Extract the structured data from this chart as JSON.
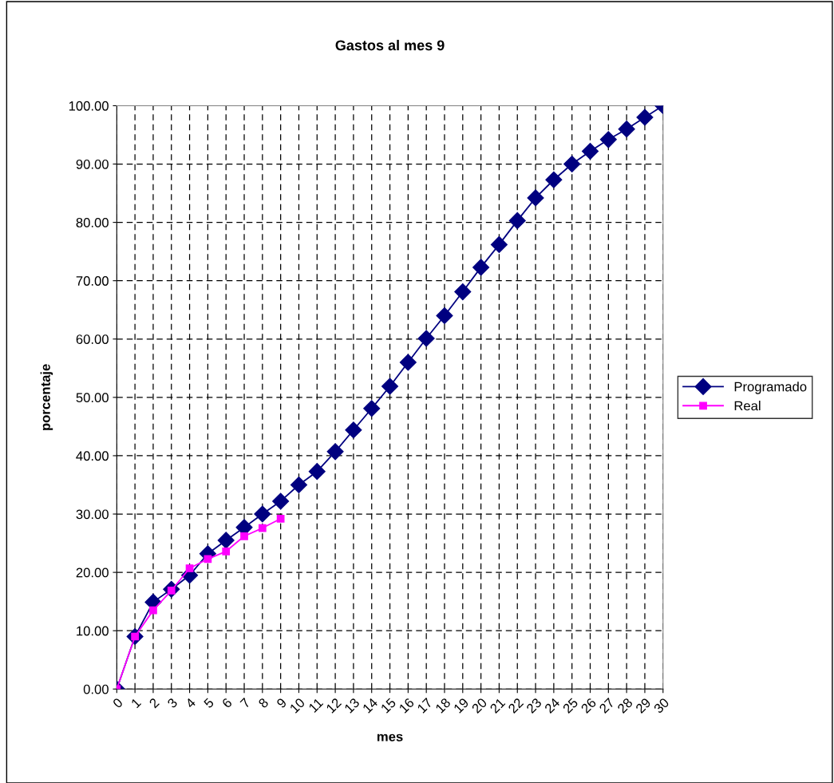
{
  "chart_data": {
    "type": "line",
    "title": "Gastos al mes 9",
    "xlabel": "mes",
    "ylabel": "porcentaje",
    "categories": [
      "0",
      "1",
      "2",
      "3",
      "4",
      "5",
      "6",
      "7",
      "8",
      "9",
      "10",
      "11",
      "12",
      "13",
      "14",
      "15",
      "16",
      "17",
      "18",
      "19",
      "20",
      "21",
      "22",
      "23",
      "24",
      "25",
      "26",
      "27",
      "28",
      "29",
      "30"
    ],
    "series": [
      {
        "name": "Programado",
        "color": "#000080",
        "marker": "diamond",
        "values": [
          0,
          9.0,
          14.9,
          17.1,
          19.5,
          23.2,
          25.5,
          27.7,
          30.0,
          32.2,
          35.0,
          37.3,
          40.7,
          44.4,
          48.1,
          51.9,
          56.0,
          60.1,
          64.0,
          68.1,
          72.3,
          76.2,
          80.3,
          84.2,
          87.3,
          90.0,
          92.2,
          94.2,
          96.0,
          98.0,
          100.0
        ]
      },
      {
        "name": "Real",
        "color": "#ff00ff",
        "marker": "square",
        "values": [
          0,
          9.0,
          13.5,
          16.9,
          20.7,
          22.3,
          23.6,
          26.2,
          27.6,
          29.2,
          null,
          null,
          null,
          null,
          null,
          null,
          null,
          null,
          null,
          null,
          null,
          null,
          null,
          null,
          null,
          null,
          null,
          null,
          null,
          null,
          null
        ]
      }
    ],
    "ylim": [
      0,
      100
    ],
    "yticks": [
      {
        "value": 0,
        "label": "0.00"
      },
      {
        "value": 10,
        "label": "10.00"
      },
      {
        "value": 20,
        "label": "20.00"
      },
      {
        "value": 30,
        "label": "30.00"
      },
      {
        "value": 40,
        "label": "40.00"
      },
      {
        "value": 50,
        "label": "50.00"
      },
      {
        "value": 60,
        "label": "60.00"
      },
      {
        "value": 70,
        "label": "70.00"
      },
      {
        "value": 80,
        "label": "80.00"
      },
      {
        "value": 90,
        "label": "90.00"
      },
      {
        "value": 100,
        "label": "100.00"
      }
    ],
    "grid": true,
    "legend": "right",
    "line_style": "solid"
  }
}
